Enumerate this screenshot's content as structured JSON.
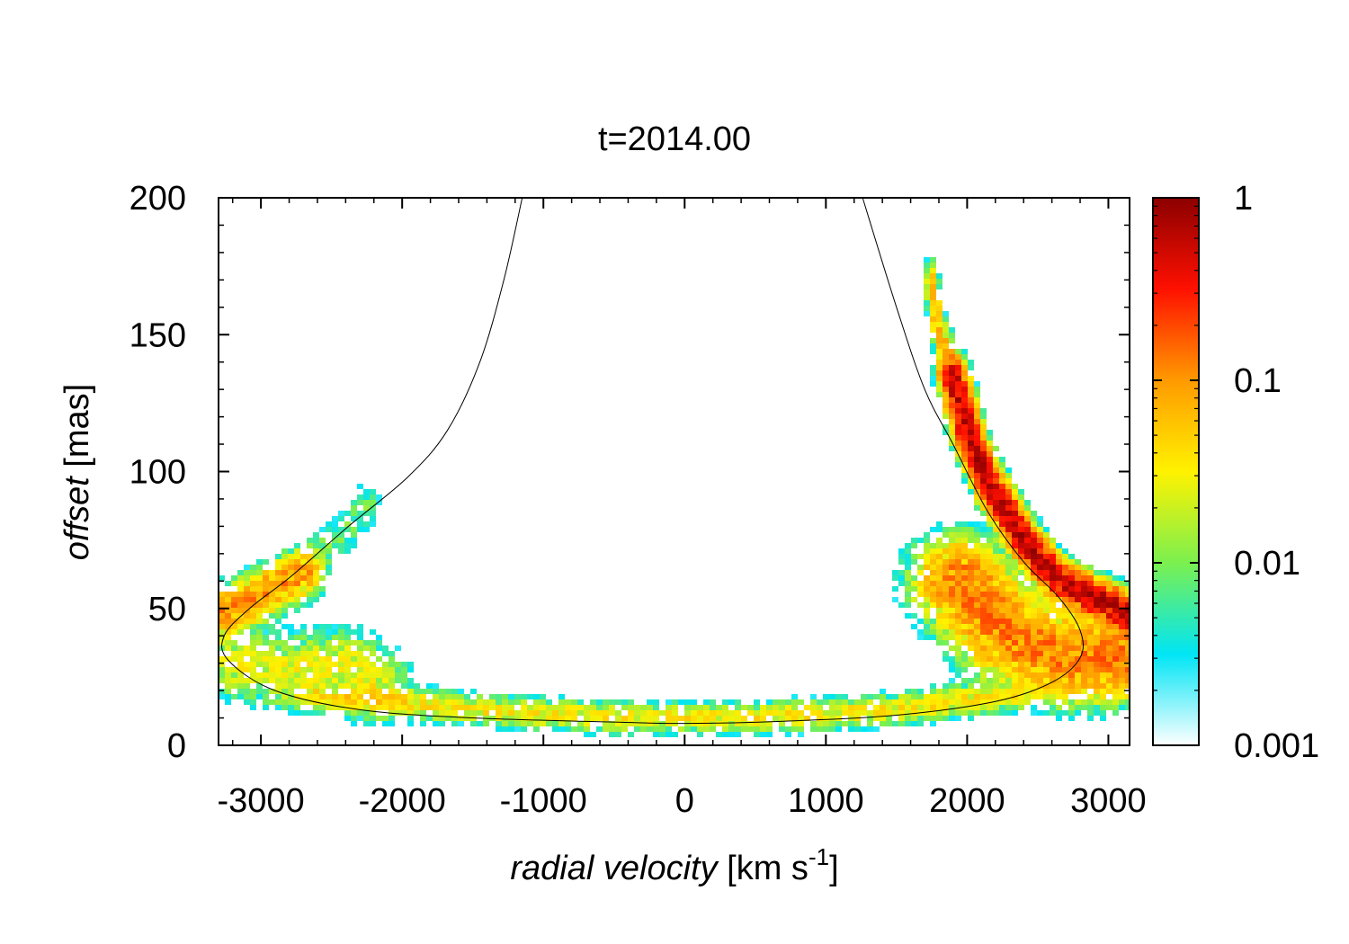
{
  "chart_data": {
    "type": "heatmap",
    "title": "t=2014.00",
    "xlabel": {
      "italic": "radial velocity",
      "unit_prefix": "[km s",
      "unit_exp": "-1",
      "unit_suffix": "]"
    },
    "ylabel": {
      "italic": "offset",
      "unit": "[mas]"
    },
    "xlim": [
      -3300,
      3150
    ],
    "ylim": [
      0,
      200
    ],
    "x_ticks": [
      -3000,
      -2000,
      -1000,
      0,
      1000,
      2000,
      3000
    ],
    "x_tick_labels": [
      "-3000",
      "-2000",
      "-1000",
      "0",
      "1000",
      "2000",
      "3000"
    ],
    "y_ticks": [
      0,
      50,
      100,
      150,
      200
    ],
    "y_tick_labels": [
      "0",
      "50",
      "100",
      "150",
      "200"
    ],
    "colorbar": {
      "scale": "log",
      "range": [
        0.001,
        1
      ],
      "ticks": [
        0.001,
        0.01,
        0.1,
        1
      ],
      "tick_labels": [
        "0.001",
        "0.01",
        "0.1",
        "1"
      ],
      "colors": [
        "#ffffff",
        "#00e5f5",
        "#7bf04f",
        "#fff200",
        "#ff9a00",
        "#ff1000",
        "#8b0000"
      ]
    },
    "model_curve": {
      "description": "black orbit-model track",
      "points": [
        [
          -1150,
          200
        ],
        [
          -1280,
          170
        ],
        [
          -1450,
          140
        ],
        [
          -1680,
          115
        ],
        [
          -1960,
          98
        ],
        [
          -2380,
          80
        ],
        [
          -2780,
          62
        ],
        [
          -3080,
          50
        ],
        [
          -3260,
          40
        ],
        [
          -3230,
          31
        ],
        [
          -2900,
          20
        ],
        [
          -2300,
          13
        ],
        [
          -1500,
          10
        ],
        [
          -500,
          8.5
        ],
        [
          0,
          8
        ],
        [
          700,
          8.8
        ],
        [
          1500,
          11
        ],
        [
          2200,
          16
        ],
        [
          2600,
          23
        ],
        [
          2800,
          32
        ],
        [
          2800,
          42
        ],
        [
          2650,
          54
        ],
        [
          2400,
          67
        ],
        [
          2150,
          85
        ],
        [
          1900,
          110
        ],
        [
          1700,
          130
        ],
        [
          1500,
          160
        ],
        [
          1260,
          200
        ]
      ]
    },
    "emission_regions": [
      {
        "name": "right bright arm",
        "level": 0.7,
        "points": [
          [
            1900,
            135
          ],
          [
            2000,
            115
          ],
          [
            2150,
            96
          ],
          [
            2400,
            75
          ],
          [
            2650,
            60
          ],
          [
            3150,
            48
          ]
        ],
        "spread_v": 80,
        "spread_o": 6
      },
      {
        "name": "right arm tail",
        "level": 0.08,
        "points": [
          [
            1750,
            168
          ],
          [
            1800,
            150
          ],
          [
            1880,
            140
          ]
        ],
        "spread_v": 40,
        "spread_o": 8
      },
      {
        "name": "right broad cloud",
        "level": 0.15,
        "points": [
          [
            1950,
            60
          ],
          [
            2300,
            40
          ],
          [
            2700,
            32
          ],
          [
            3150,
            32
          ]
        ],
        "spread_v": 300,
        "spread_o": 14
      },
      {
        "name": "left arm",
        "level": 0.12,
        "points": [
          [
            -3300,
            48
          ],
          [
            -3100,
            52
          ],
          [
            -2900,
            58
          ],
          [
            -2700,
            63
          ]
        ],
        "spread_v": 120,
        "spread_o": 8
      },
      {
        "name": "left cloud",
        "level": 0.03,
        "points": [
          [
            -3200,
            30
          ],
          [
            -2800,
            28
          ],
          [
            -2400,
            30
          ],
          [
            -2200,
            22
          ]
        ],
        "spread_v": 250,
        "spread_o": 12
      },
      {
        "name": "left upper filament",
        "level": 0.01,
        "points": [
          [
            -2600,
            70
          ],
          [
            -2400,
            78
          ],
          [
            -2250,
            88
          ]
        ],
        "spread_v": 90,
        "spread_o": 8
      },
      {
        "name": "bottom band",
        "level": 0.04,
        "points": [
          [
            -2500,
            18
          ],
          [
            -1500,
            13
          ],
          [
            -500,
            10
          ],
          [
            500,
            10
          ],
          [
            1500,
            13
          ],
          [
            2200,
            18
          ]
        ],
        "spread_v": 350,
        "spread_o": 5
      }
    ]
  }
}
